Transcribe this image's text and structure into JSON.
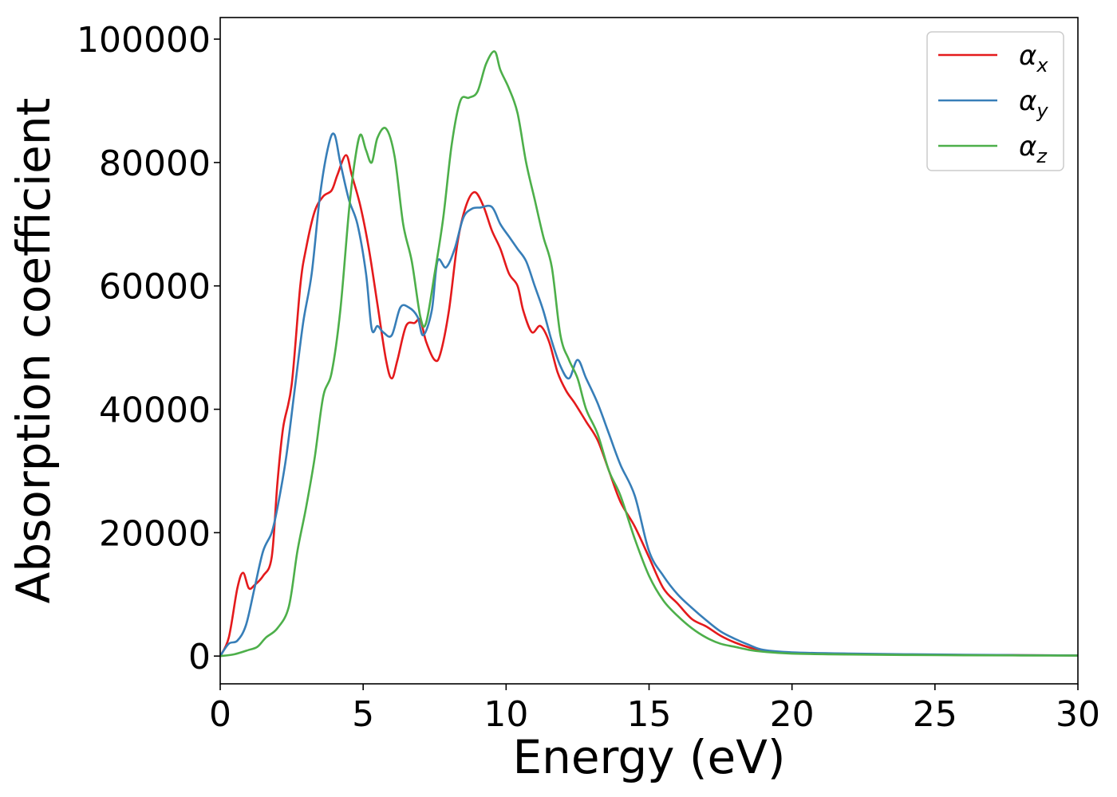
{
  "chart_data": {
    "type": "line",
    "title": "",
    "xlabel": "Energy (eV)",
    "ylabel": "Absorption coefficient",
    "xlim": [
      0,
      30
    ],
    "ylim": [
      -4500,
      103500
    ],
    "xticks": [
      0,
      5,
      10,
      15,
      20,
      25,
      30
    ],
    "yticks": [
      0,
      20000,
      40000,
      60000,
      80000,
      100000
    ],
    "grid": false,
    "legend_position": "top-right",
    "series": [
      {
        "name": "α",
        "subscript": "x",
        "color": "#e41a1c",
        "x": [
          0,
          0.3,
          0.6,
          0.8,
          1.0,
          1.2,
          1.5,
          1.8,
          2.0,
          2.2,
          2.5,
          2.8,
          3.0,
          3.3,
          3.6,
          3.9,
          4.1,
          4.4,
          4.6,
          4.9,
          5.2,
          5.5,
          5.8,
          6.0,
          6.2,
          6.5,
          6.8,
          7.0,
          7.2,
          7.5,
          7.7,
          8.0,
          8.3,
          8.6,
          8.9,
          9.2,
          9.5,
          9.8,
          10.1,
          10.4,
          10.6,
          10.9,
          11.2,
          11.5,
          11.8,
          12.1,
          12.4,
          12.8,
          13.2,
          13.6,
          14.0,
          14.5,
          15.0,
          15.5,
          16.0,
          16.5,
          17.0,
          17.5,
          18.0,
          18.5,
          19.0,
          20.0,
          22.0,
          25.0,
          28.0,
          30.0
        ],
        "y": [
          0,
          3000,
          11000,
          13500,
          11000,
          11500,
          13000,
          16000,
          28000,
          37000,
          44000,
          60000,
          66000,
          72000,
          74500,
          75500,
          78000,
          81200,
          78000,
          73000,
          66000,
          57000,
          48000,
          45000,
          48000,
          53500,
          54000,
          54500,
          51000,
          48000,
          49000,
          56000,
          67000,
          73000,
          75200,
          73000,
          69000,
          66000,
          62000,
          60000,
          56000,
          52500,
          53500,
          51000,
          46000,
          43000,
          41000,
          38000,
          35000,
          30000,
          25000,
          21000,
          16000,
          11000,
          8500,
          6000,
          4800,
          3300,
          2200,
          1400,
          900,
          500,
          300,
          200,
          150,
          100
        ]
      },
      {
        "name": "α",
        "subscript": "y",
        "color": "#377eb8",
        "x": [
          0,
          0.3,
          0.6,
          0.9,
          1.2,
          1.5,
          1.8,
          2.0,
          2.3,
          2.6,
          2.9,
          3.2,
          3.5,
          3.8,
          4.0,
          4.2,
          4.5,
          4.8,
          5.1,
          5.3,
          5.5,
          5.7,
          6.0,
          6.3,
          6.6,
          6.9,
          7.1,
          7.4,
          7.6,
          7.9,
          8.2,
          8.5,
          8.8,
          9.1,
          9.5,
          9.8,
          10.1,
          10.4,
          10.7,
          11.0,
          11.3,
          11.6,
          11.9,
          12.2,
          12.5,
          12.8,
          13.2,
          13.6,
          14.0,
          14.5,
          15.0,
          15.5,
          16.0,
          16.5,
          17.0,
          17.5,
          18.0,
          18.5,
          19.0,
          20.0,
          22.0,
          25.0,
          28.0,
          30.0
        ],
        "y": [
          0,
          2000,
          2500,
          5000,
          11000,
          17000,
          20000,
          24000,
          32000,
          43000,
          54000,
          62000,
          75000,
          83000,
          84500,
          80000,
          74000,
          70000,
          62000,
          53000,
          53500,
          52500,
          52000,
          56500,
          56500,
          55000,
          52000,
          56000,
          64000,
          63000,
          66000,
          71000,
          72500,
          72700,
          72800,
          70000,
          68000,
          66000,
          64000,
          60000,
          56000,
          51000,
          47000,
          45000,
          48000,
          45000,
          41000,
          36000,
          31000,
          26000,
          17000,
          13000,
          10000,
          7800,
          5800,
          4000,
          2800,
          1800,
          1000,
          600,
          400,
          250,
          150,
          100
        ]
      },
      {
        "name": "α",
        "subscript": "z",
        "color": "#4daf4a",
        "x": [
          0,
          0.5,
          1.0,
          1.3,
          1.6,
          2.0,
          2.4,
          2.7,
          3.0,
          3.3,
          3.6,
          3.9,
          4.2,
          4.5,
          4.7,
          4.9,
          5.1,
          5.3,
          5.5,
          5.8,
          6.1,
          6.4,
          6.7,
          7.0,
          7.2,
          7.5,
          7.8,
          8.1,
          8.4,
          8.7,
          9.0,
          9.3,
          9.6,
          9.8,
          10.1,
          10.4,
          10.7,
          11.0,
          11.3,
          11.6,
          11.9,
          12.2,
          12.5,
          12.8,
          13.2,
          13.6,
          14.0,
          14.5,
          15.0,
          15.5,
          16.0,
          16.5,
          17.0,
          17.5,
          18.0,
          18.5,
          19.0,
          20.0,
          22.0,
          25.0,
          28.0,
          30.0
        ],
        "y": [
          0,
          300,
          1000,
          1500,
          3000,
          4500,
          8000,
          17000,
          24000,
          32000,
          42000,
          46000,
          56000,
          72000,
          80000,
          84500,
          82000,
          80000,
          84000,
          85500,
          81000,
          70000,
          64000,
          55000,
          54000,
          62000,
          71000,
          83000,
          90000,
          90500,
          91500,
          96000,
          98000,
          95000,
          92000,
          88000,
          80000,
          74000,
          68000,
          63000,
          52000,
          48000,
          45000,
          40000,
          36000,
          30000,
          26000,
          19000,
          13000,
          9000,
          6500,
          4500,
          3000,
          2000,
          1500,
          1000,
          700,
          400,
          250,
          150,
          100,
          80
        ]
      }
    ]
  }
}
